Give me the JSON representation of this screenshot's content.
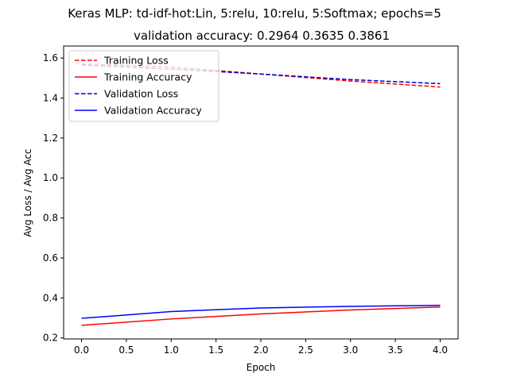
{
  "chart_data": {
    "type": "line",
    "title_line1": "Keras MLP: td-idf-hot:Lin, 5:relu, 10:relu, 5:Softmax; epochs=5",
    "title_line2": "validation accuracy:  0.2964  0.3635  0.3861",
    "xlabel": "Epoch",
    "ylabel": "Avg Loss / Avg Acc",
    "x": [
      0,
      1,
      2,
      3,
      4
    ],
    "xticks": [
      "0.0",
      "0.5",
      "1.0",
      "1.5",
      "2.0",
      "2.5",
      "3.0",
      "3.5",
      "4.0"
    ],
    "yticks": [
      "0.2",
      "0.4",
      "0.6",
      "0.8",
      "1.0",
      "1.2",
      "1.4",
      "1.6"
    ],
    "xlim": [
      -0.2,
      4.2
    ],
    "ylim": [
      0.195,
      1.66
    ],
    "grid": false,
    "legend_position": "top-left",
    "series": [
      {
        "name": "Training Loss",
        "values": [
          1.57,
          1.555,
          1.52,
          1.485,
          1.455
        ],
        "color": "#ff0000",
        "style": "dashed"
      },
      {
        "name": "Training Accuracy",
        "values": [
          0.263,
          0.295,
          0.32,
          0.34,
          0.355
        ],
        "color": "#ff0000",
        "style": "solid"
      },
      {
        "name": "Validation Loss",
        "values": [
          1.565,
          1.545,
          1.52,
          1.492,
          1.472
        ],
        "color": "#0000cc",
        "style": "dashed"
      },
      {
        "name": "Validation Accuracy",
        "values": [
          0.298,
          0.332,
          0.35,
          0.358,
          0.363
        ],
        "color": "#0000ff",
        "style": "solid"
      }
    ]
  }
}
